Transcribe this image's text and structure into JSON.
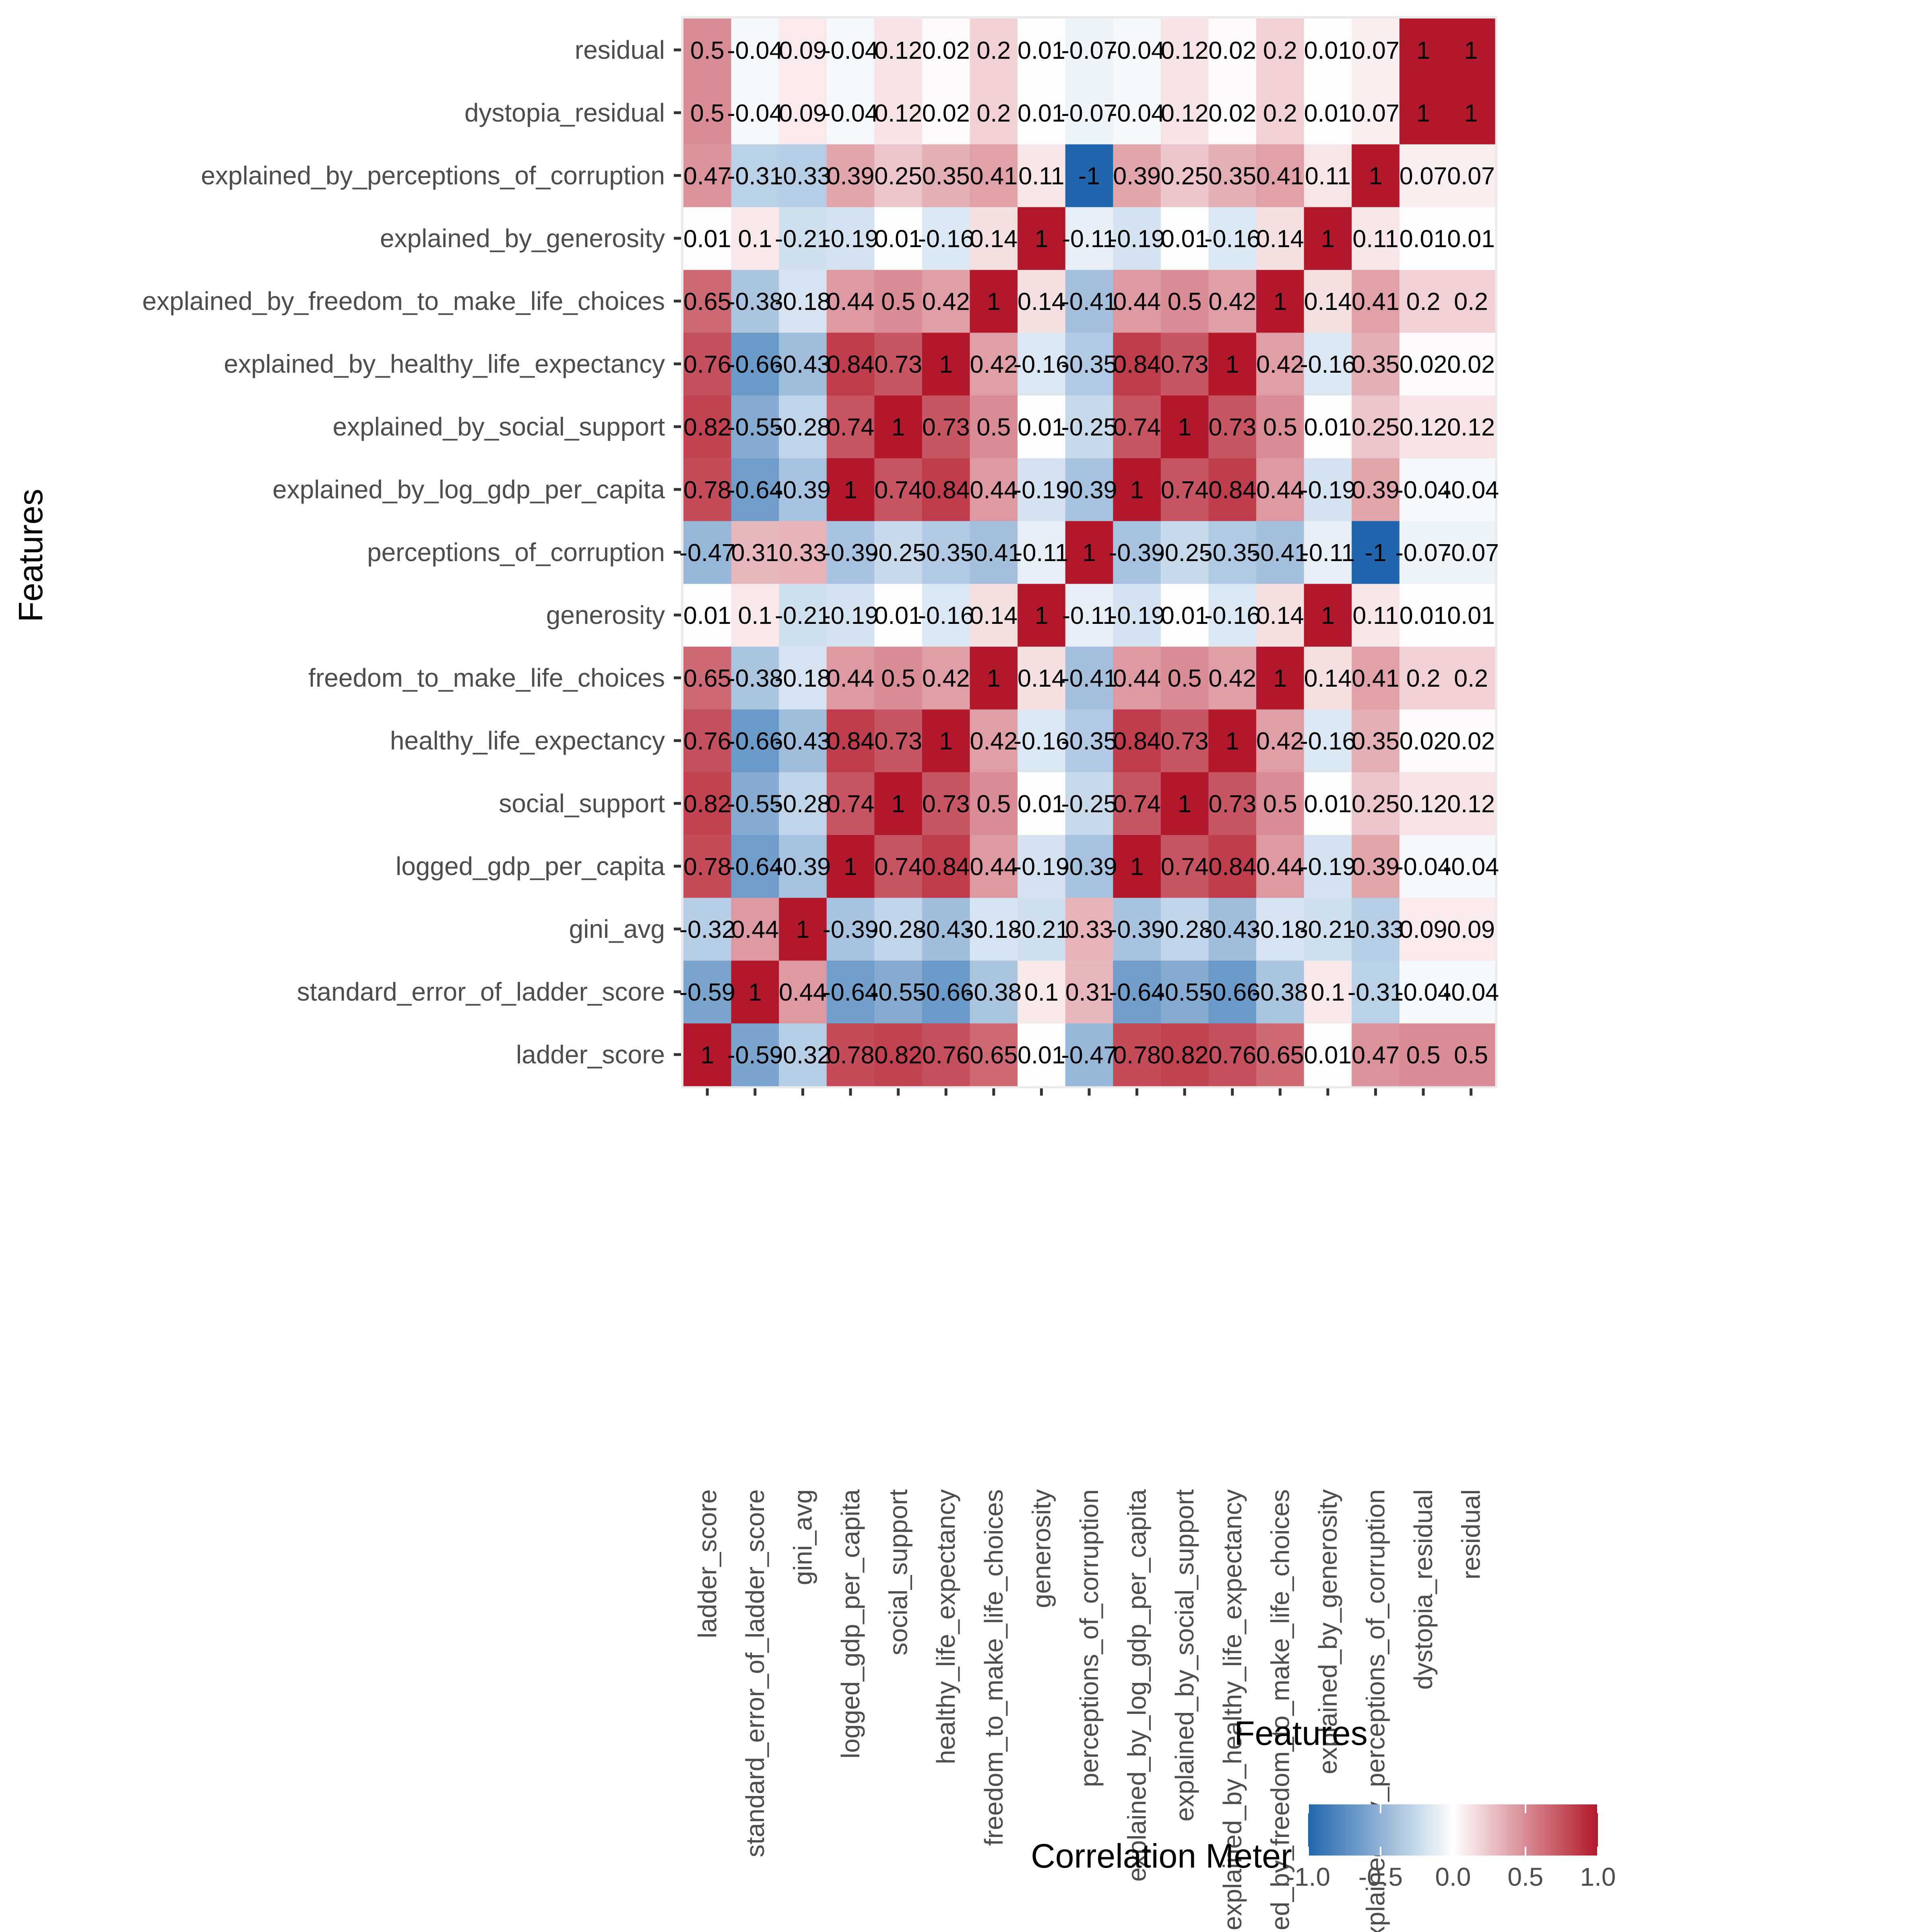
{
  "chart_data": {
    "type": "heatmap",
    "xlabel": "Features",
    "ylabel": "Features",
    "features": [
      "ladder_score",
      "standard_error_of_ladder_score",
      "gini_avg",
      "logged_gdp_per_capita",
      "social_support",
      "healthy_life_expectancy",
      "freedom_to_make_life_choices",
      "generosity",
      "perceptions_of_corruption",
      "explained_by_log_gdp_per_capita",
      "explained_by_social_support",
      "explained_by_healthy_life_expectancy",
      "explained_by_freedom_to_make_life_choices",
      "explained_by_generosity",
      "explained_by_perceptions_of_corruption",
      "dystopia_residual",
      "residual"
    ],
    "matrix": [
      [
        1,
        -0.59,
        -0.32,
        0.78,
        0.82,
        0.76,
        0.65,
        0.01,
        -0.47,
        0.78,
        0.82,
        0.76,
        0.65,
        0.01,
        0.47,
        0.5,
        0.5
      ],
      [
        -0.59,
        1,
        0.44,
        -0.64,
        -0.55,
        -0.66,
        -0.38,
        0.1,
        0.31,
        -0.64,
        -0.55,
        -0.66,
        -0.38,
        0.1,
        -0.31,
        -0.04,
        -0.04
      ],
      [
        -0.32,
        0.44,
        1,
        -0.39,
        -0.28,
        -0.43,
        -0.18,
        -0.21,
        0.33,
        -0.39,
        -0.28,
        -0.43,
        -0.18,
        -0.21,
        -0.33,
        0.09,
        0.09
      ],
      [
        0.78,
        -0.64,
        -0.39,
        1,
        0.74,
        0.84,
        0.44,
        -0.19,
        -0.39,
        1,
        0.74,
        0.84,
        0.44,
        -0.19,
        0.39,
        -0.04,
        -0.04
      ],
      [
        0.82,
        -0.55,
        -0.28,
        0.74,
        1,
        0.73,
        0.5,
        0.01,
        -0.25,
        0.74,
        1,
        0.73,
        0.5,
        0.01,
        0.25,
        0.12,
        0.12
      ],
      [
        0.76,
        -0.66,
        -0.43,
        0.84,
        0.73,
        1,
        0.42,
        -0.16,
        -0.35,
        0.84,
        0.73,
        1,
        0.42,
        -0.16,
        0.35,
        0.02,
        0.02
      ],
      [
        0.65,
        -0.38,
        -0.18,
        0.44,
        0.5,
        0.42,
        1,
        0.14,
        -0.41,
        0.44,
        0.5,
        0.42,
        1,
        0.14,
        0.41,
        0.2,
        0.2
      ],
      [
        0.01,
        0.1,
        -0.21,
        -0.19,
        0.01,
        -0.16,
        0.14,
        1,
        -0.11,
        -0.19,
        0.01,
        -0.16,
        0.14,
        1,
        0.11,
        0.01,
        0.01
      ],
      [
        -0.47,
        0.31,
        0.33,
        -0.39,
        -0.25,
        -0.35,
        -0.41,
        -0.11,
        1,
        -0.39,
        -0.25,
        -0.35,
        -0.41,
        -0.11,
        -1,
        -0.07,
        -0.07
      ],
      [
        0.78,
        -0.64,
        -0.39,
        1,
        0.74,
        0.84,
        0.44,
        -0.19,
        -0.39,
        1,
        0.74,
        0.84,
        0.44,
        -0.19,
        0.39,
        -0.04,
        -0.04
      ],
      [
        0.82,
        -0.55,
        -0.28,
        0.74,
        1,
        0.73,
        0.5,
        0.01,
        -0.25,
        0.74,
        1,
        0.73,
        0.5,
        0.01,
        0.25,
        0.12,
        0.12
      ],
      [
        0.76,
        -0.66,
        -0.43,
        0.84,
        0.73,
        1,
        0.42,
        -0.16,
        -0.35,
        0.84,
        0.73,
        1,
        0.42,
        -0.16,
        0.35,
        0.02,
        0.02
      ],
      [
        0.65,
        -0.38,
        -0.18,
        0.44,
        0.5,
        0.42,
        1,
        0.14,
        -0.41,
        0.44,
        0.5,
        0.42,
        1,
        0.14,
        0.41,
        0.2,
        0.2
      ],
      [
        0.01,
        0.1,
        -0.21,
        -0.19,
        0.01,
        -0.16,
        0.14,
        1,
        -0.11,
        -0.19,
        0.01,
        -0.16,
        0.14,
        1,
        0.11,
        0.01,
        0.01
      ],
      [
        0.47,
        -0.31,
        -0.33,
        0.39,
        0.25,
        0.35,
        0.41,
        0.11,
        -1,
        0.39,
        0.25,
        0.35,
        0.41,
        0.11,
        1,
        0.07,
        0.07
      ],
      [
        0.5,
        -0.04,
        0.09,
        -0.04,
        0.12,
        0.02,
        0.2,
        0.01,
        -0.07,
        -0.04,
        0.12,
        0.02,
        0.2,
        0.01,
        0.07,
        1,
        1
      ],
      [
        0.5,
        -0.04,
        0.09,
        -0.04,
        0.12,
        0.02,
        0.2,
        0.01,
        -0.07,
        -0.04,
        0.12,
        0.02,
        0.2,
        0.01,
        0.07,
        1,
        1
      ]
    ],
    "y_order": "bottom-to-top",
    "legend": {
      "title": "Correlation Meter",
      "position": "bottom",
      "range": [
        -1,
        1
      ],
      "ticks": [
        "-1.0",
        "-0.5",
        "0.0",
        "0.5",
        "1.0"
      ],
      "low_color": "#2166ac",
      "mid_color": "#ffffff",
      "high_color": "#b2182b"
    },
    "panel_background": "#ebebeb",
    "grid": false
  }
}
